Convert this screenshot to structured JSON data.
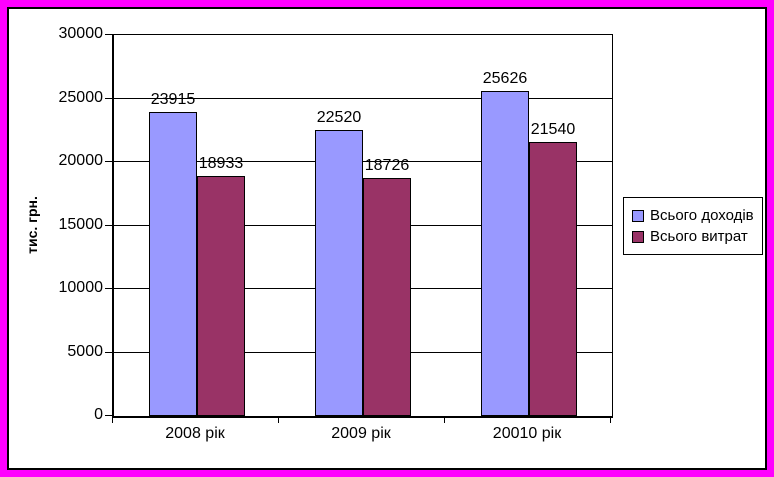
{
  "frame": {
    "border_color": "#FF00FF",
    "background_color": "#FFFFFF",
    "axis_color": "#000000"
  },
  "chart_data": {
    "type": "bar",
    "title": "",
    "ylabel": "тис. грн.",
    "xlabel": "",
    "categories": [
      "2008 рік",
      "2009 рік",
      "20010 рік"
    ],
    "series": [
      {
        "name": "Всього доходів",
        "color": "#9999FF",
        "values": [
          23915,
          22520,
          25626
        ]
      },
      {
        "name": "Всього витрат",
        "color": "#993366",
        "values": [
          18933,
          18726,
          21540
        ]
      }
    ],
    "ylim": [
      0,
      30000
    ],
    "yticks": [
      0,
      5000,
      10000,
      15000,
      20000,
      25000,
      30000
    ],
    "grid": true,
    "data_labels": true,
    "legend_position": "right"
  }
}
